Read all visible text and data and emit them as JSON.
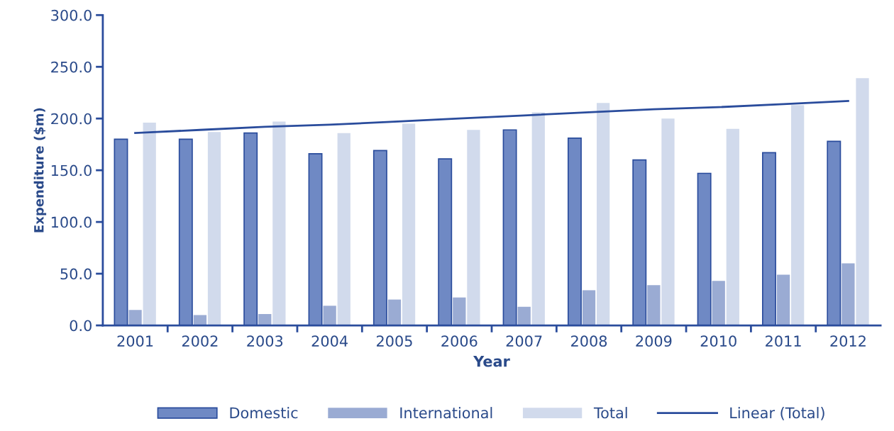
{
  "chart_data": {
    "type": "bar",
    "xlabel": "Year",
    "ylabel": "Expenditure ($m)",
    "categories": [
      "2001",
      "2002",
      "2003",
      "2004",
      "2005",
      "2006",
      "2007",
      "2008",
      "2009",
      "2010",
      "2011",
      "2012"
    ],
    "series": [
      {
        "name": "Domestic",
        "color": "#6f89c4",
        "values": [
          180,
          180,
          186,
          166,
          169,
          161,
          189,
          181,
          160,
          147,
          167,
          178
        ]
      },
      {
        "name": "International",
        "color": "#9aabd3",
        "values": [
          15,
          10,
          11,
          19,
          25,
          27,
          18,
          34,
          39,
          43,
          49,
          60
        ]
      },
      {
        "name": "Total",
        "color": "#d1daec",
        "values": [
          196,
          187,
          197,
          186,
          195,
          189,
          206,
          215,
          200,
          190,
          213,
          239
        ]
      },
      {
        "name": "Linear (Total)",
        "type": "line",
        "color": "#2a4c9c",
        "values": [
          186,
          189,
          192,
          194,
          197,
          200,
          203,
          206,
          209,
          211,
          214,
          217
        ]
      }
    ],
    "ylim": [
      0,
      300
    ],
    "yticks": [
      {
        "value": 0,
        "label": "0.0"
      },
      {
        "value": 50,
        "label": "50.0"
      },
      {
        "value": 100,
        "label": "100.0"
      },
      {
        "value": 150,
        "label": "150.0"
      },
      {
        "value": 200,
        "label": "200.0"
      },
      {
        "value": 250,
        "label": "250.0"
      },
      {
        "value": 300,
        "label": "300.0"
      }
    ],
    "grid": false,
    "legend": "bottom"
  }
}
